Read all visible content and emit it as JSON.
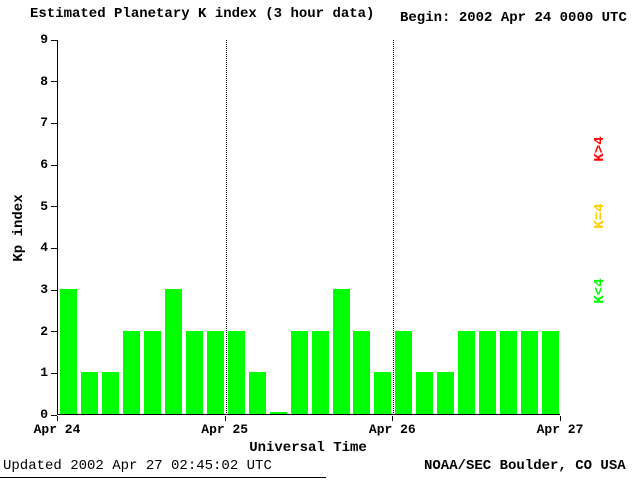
{
  "header": {
    "title": "Estimated Planetary K index (3 hour data)",
    "begin_label": "Begin:",
    "begin_value": "2002 Apr 24 0000 UTC"
  },
  "footer": {
    "updated": "Updated 2002 Apr 27 02:45:02 UTC",
    "source": "NOAA/SEC Boulder, CO USA"
  },
  "legend": [
    {
      "label": "K>4",
      "color": "#ff0000"
    },
    {
      "label": "K=4",
      "color": "#ffcc00"
    },
    {
      "label": "K<4",
      "color": "#00ff00"
    }
  ],
  "chart_data": {
    "type": "bar",
    "title": "Estimated Planetary K index (3 hour data)",
    "xlabel": "Universal Time",
    "ylabel": "Kp index",
    "ylim": [
      0,
      9
    ],
    "y_ticks": [
      0,
      1,
      2,
      3,
      4,
      5,
      6,
      7,
      8,
      9
    ],
    "x_ticks": [
      "Apr 24",
      "Apr 25",
      "Apr 26",
      "Apr 27"
    ],
    "interval_hours": 3,
    "bars_per_day": 8,
    "grid": "dotted vertical lines at interior day boundaries",
    "legend_position": "right, rotated",
    "bar_color_default": "#00ff00",
    "values": [
      3,
      1,
      1,
      2,
      2,
      3,
      2,
      2,
      2,
      1,
      0,
      2,
      2,
      3,
      2,
      1,
      2,
      1,
      1,
      2,
      2,
      2,
      2,
      2
    ]
  }
}
